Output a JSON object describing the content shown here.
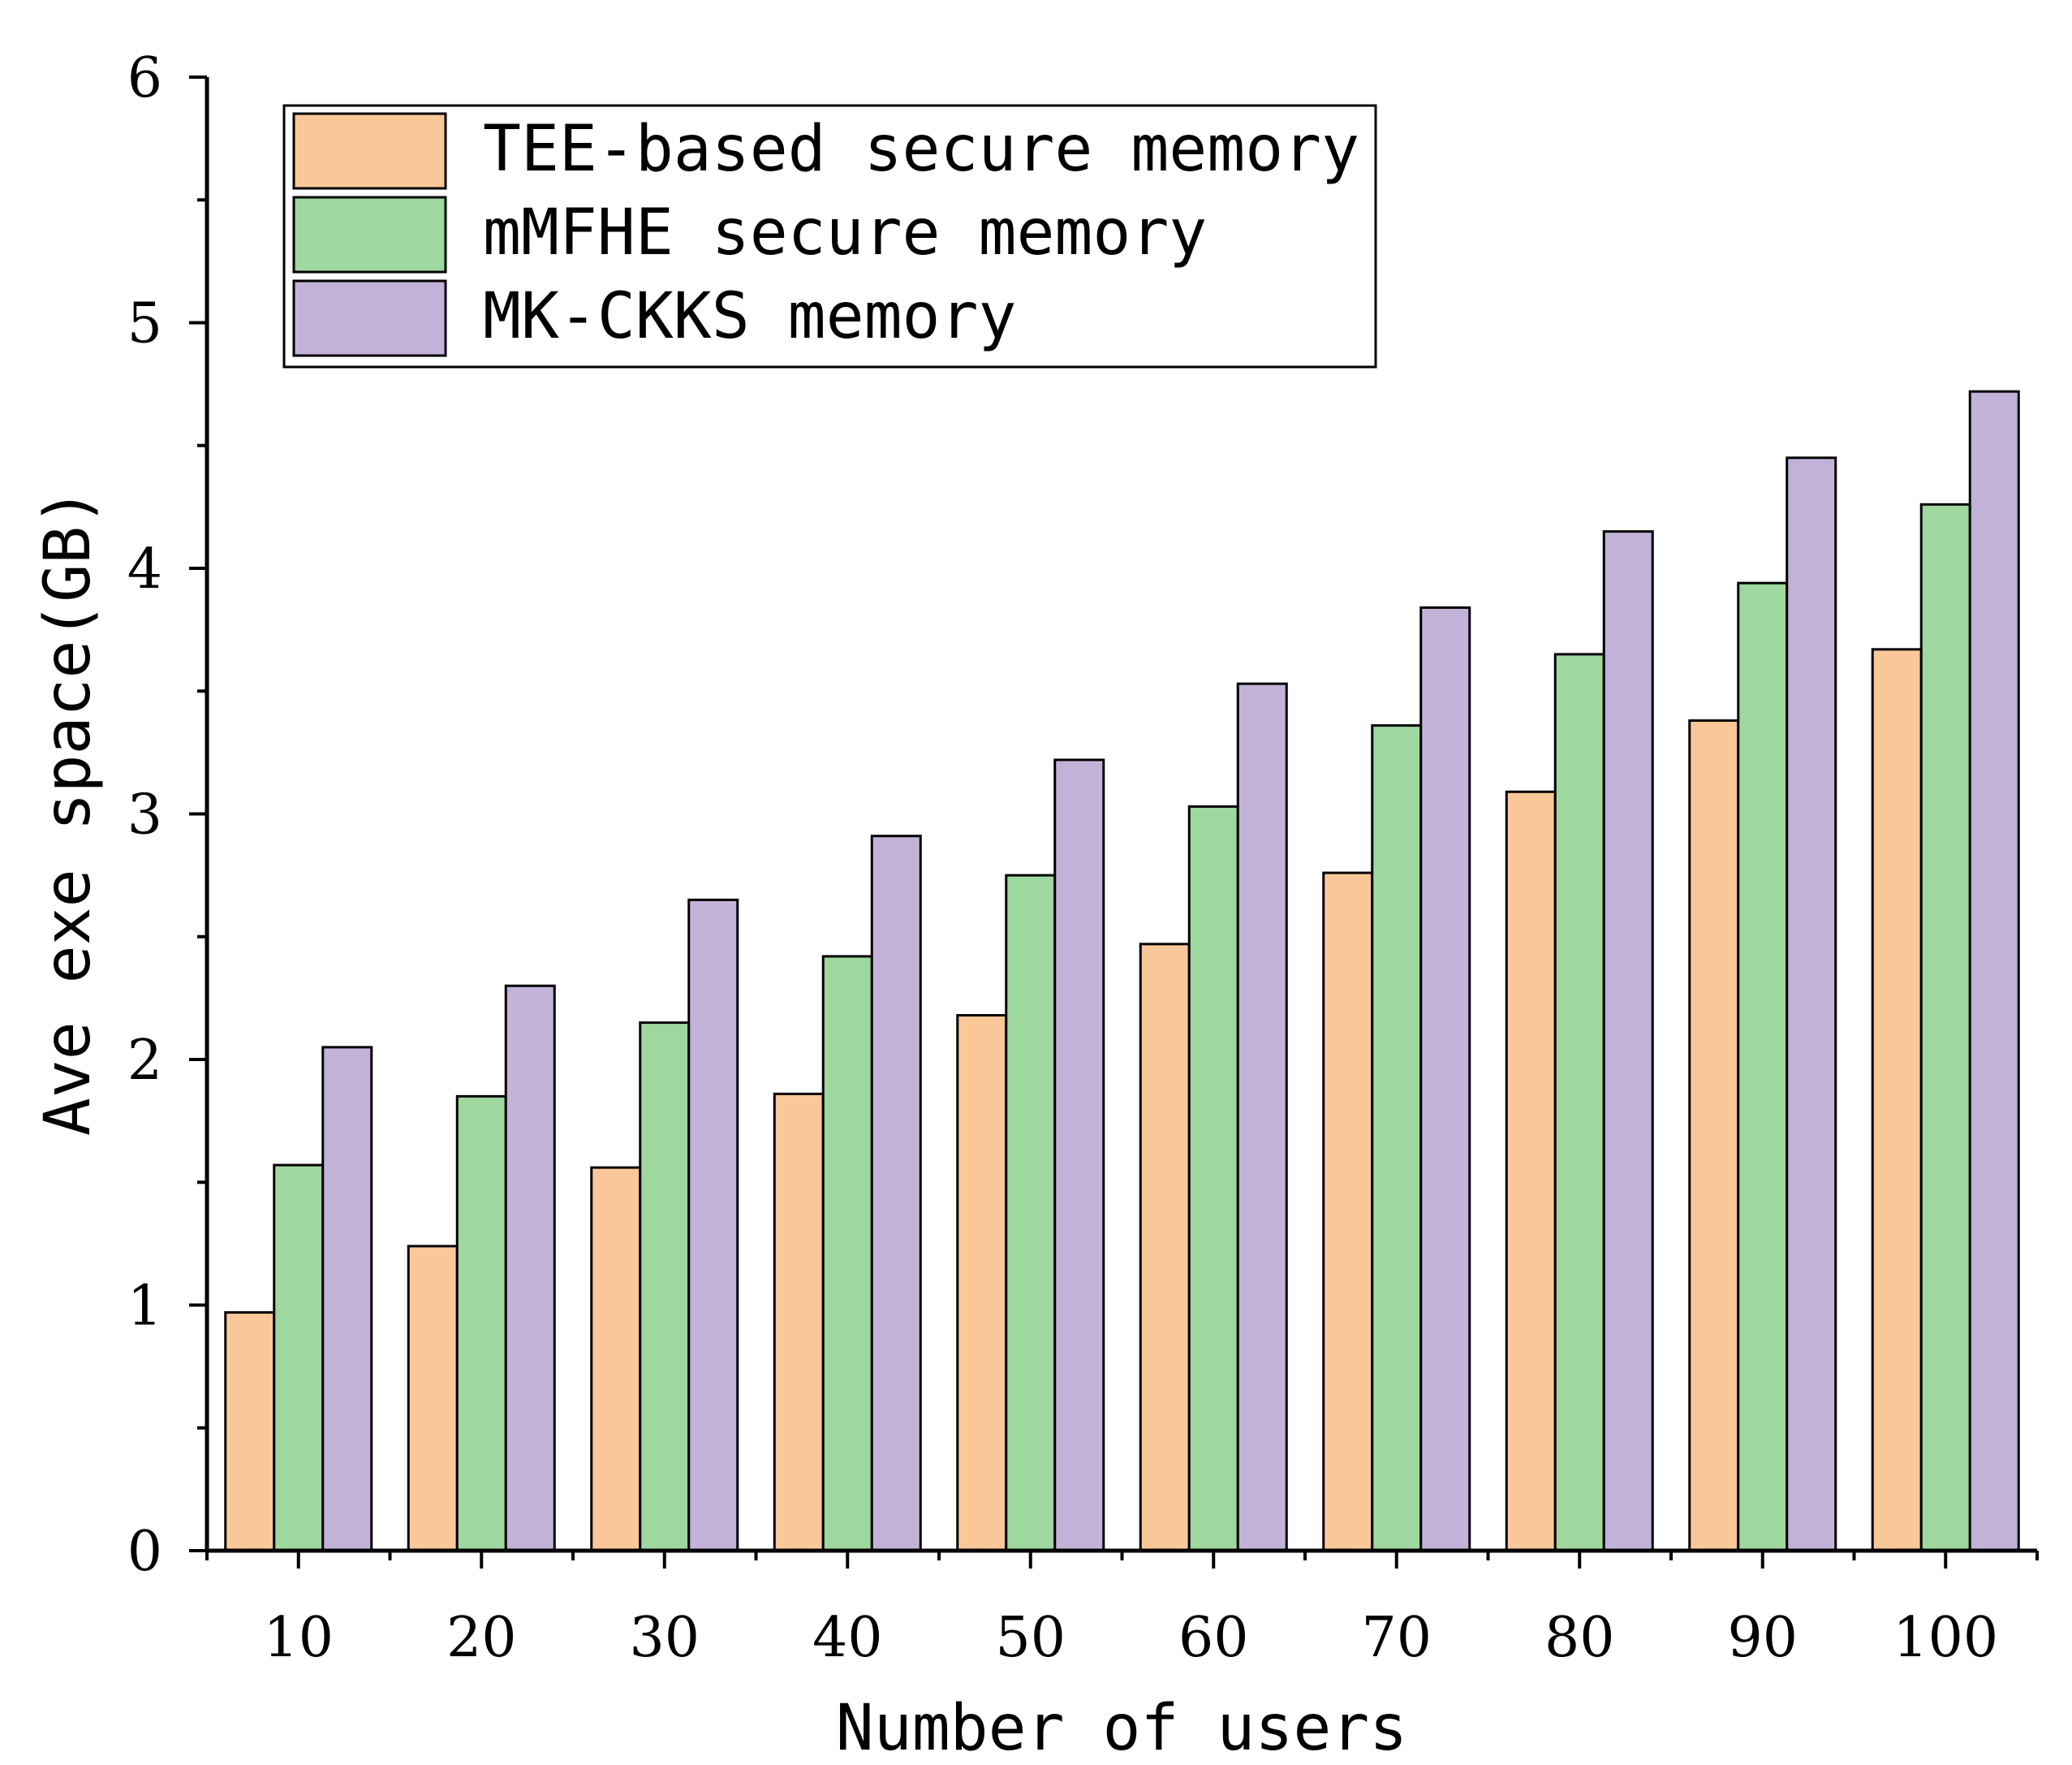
{
  "chart_data": {
    "type": "bar",
    "title": "",
    "xlabel": "Number of users",
    "ylabel": "Ave exe space(GB)",
    "categories": [
      "10",
      "20",
      "30",
      "40",
      "50",
      "60",
      "70",
      "80",
      "90",
      "100"
    ],
    "ylim": [
      0,
      6
    ],
    "yticks": [
      "0",
      "1",
      "2",
      "3",
      "4",
      "5",
      "6"
    ],
    "legend_position": "top-left",
    "grid": false,
    "series": [
      {
        "name": "TEE-based secure memory",
        "color": "#FAC898",
        "values": [
          0.97,
          1.24,
          1.56,
          1.86,
          2.18,
          2.47,
          2.76,
          3.09,
          3.38,
          3.67
        ]
      },
      {
        "name": "mMFHE secure memory",
        "color": "#9ED89E",
        "values": [
          1.57,
          1.85,
          2.15,
          2.42,
          2.75,
          3.03,
          3.36,
          3.65,
          3.94,
          4.26
        ]
      },
      {
        "name": "MK-CKKS memory",
        "color": "#C3B2D8",
        "values": [
          2.05,
          2.3,
          2.65,
          2.91,
          3.22,
          3.53,
          3.84,
          4.15,
          4.45,
          4.72
        ]
      }
    ]
  }
}
